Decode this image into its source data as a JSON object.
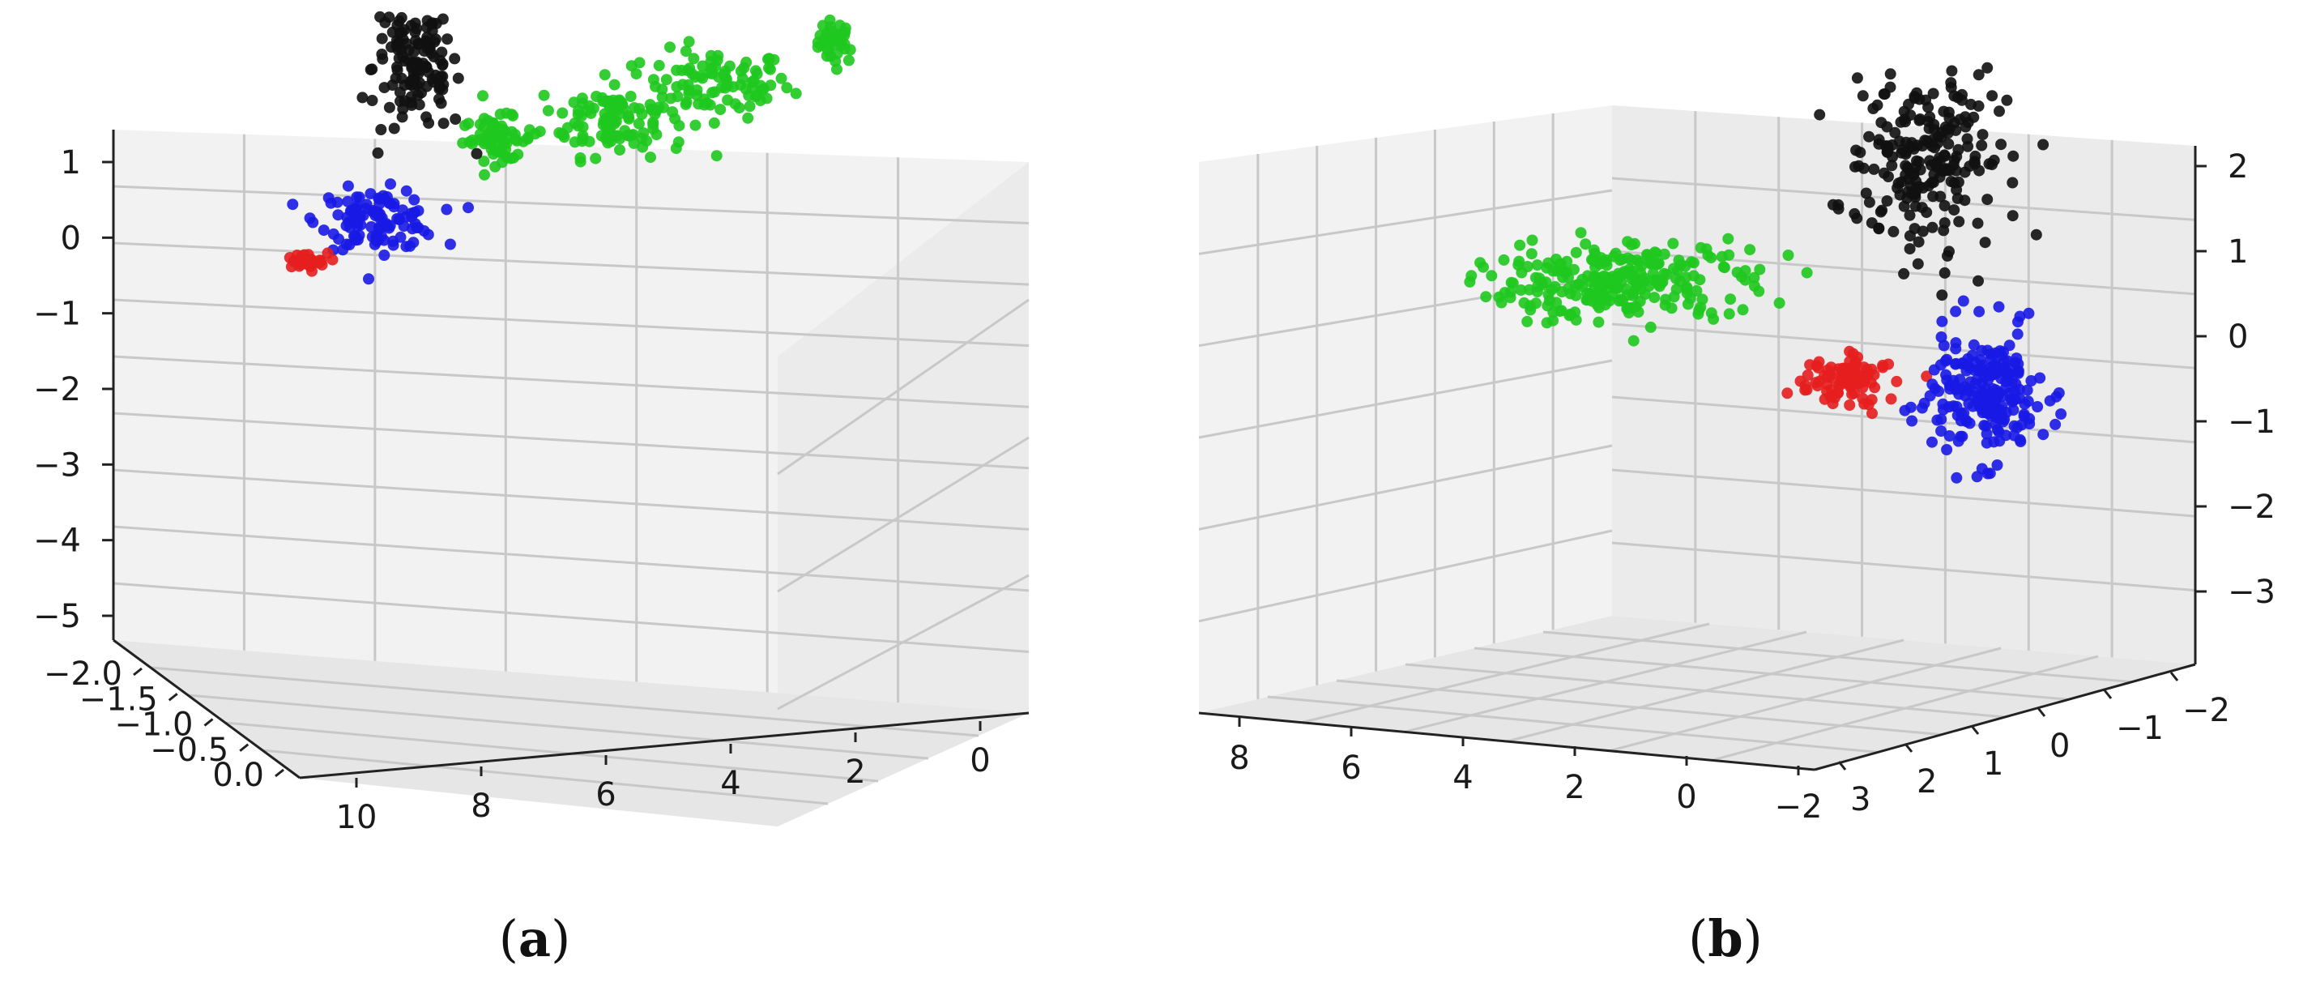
{
  "captions": [
    {
      "open": "(",
      "letter": "a",
      "close": ")"
    },
    {
      "open": "(",
      "letter": "b",
      "close": ")"
    }
  ],
  "colors": {
    "green": "#1ec81e",
    "black": "#111111",
    "blue": "#1a1ae6",
    "red": "#e61e1e"
  },
  "chart_data": [
    {
      "type": "scatter",
      "panel": "a",
      "title": "",
      "axes": {
        "x": {
          "ticks": [
            "10",
            "8",
            "6",
            "4",
            "2",
            "0"
          ],
          "range": [
            -1,
            11
          ]
        },
        "y": {
          "ticks": [
            "−2.0",
            "−1.5",
            "−1.0",
            "−0.5",
            "0.0"
          ],
          "range": [
            -2.0,
            0.0
          ]
        },
        "z": {
          "ticks": [
            "1",
            "0",
            "−1",
            "−2",
            "−3",
            "−4",
            "−5"
          ],
          "range": [
            -5.5,
            1.2
          ]
        }
      },
      "grid": true,
      "series": [
        {
          "color": "green",
          "clusters": [
            {
              "x": 8.2,
              "z": 0.9,
              "spread": [
                0.25,
                0.25
              ],
              "n": 40
            },
            {
              "x": 6.5,
              "z": 0.4,
              "spread": [
                1.0,
                0.4
              ],
              "n": 90
            },
            {
              "x": 5.0,
              "z": 0.0,
              "spread": [
                1.0,
                0.45
              ],
              "n": 120
            },
            {
              "x": 3.4,
              "z": -0.25,
              "spread": [
                0.5,
                0.25
              ],
              "n": 60
            }
          ]
        },
        {
          "color": "black",
          "clusters": [
            {
              "x": 2.4,
              "z": 0.6,
              "spread": [
                0.6,
                0.8
              ],
              "n": 140
            }
          ]
        },
        {
          "color": "blue",
          "clusters": [
            {
              "x": 1.6,
              "z": -1.2,
              "spread": [
                0.8,
                0.35
              ],
              "n": 110
            }
          ]
        },
        {
          "color": "red",
          "clusters": [
            {
              "x": 0.5,
              "z": -1.7,
              "spread": [
                0.35,
                0.1
              ],
              "n": 30
            }
          ]
        }
      ]
    },
    {
      "type": "scatter",
      "panel": "b",
      "title": "",
      "axes": {
        "x": {
          "ticks": [
            "8",
            "6",
            "4",
            "2",
            "0",
            "−2"
          ],
          "range": [
            -2.5,
            8.5
          ]
        },
        "y": {
          "ticks": [
            "3",
            "2",
            "1",
            "0",
            "−1",
            "−2"
          ],
          "range": [
            -2.5,
            3.5
          ]
        },
        "z": {
          "ticks": [
            "2",
            "1",
            "0",
            "−1",
            "−2",
            "−3"
          ],
          "range": [
            -3.5,
            2.4
          ]
        }
      },
      "grid": true,
      "series": [
        {
          "color": "green",
          "clusters": [
            {
              "x": 4.0,
              "z": 0.1,
              "spread": [
                1.6,
                0.45
              ],
              "n": 260
            }
          ]
        },
        {
          "color": "black",
          "clusters": [
            {
              "x": 0.2,
              "z": 1.3,
              "spread": [
                1.0,
                0.9
              ],
              "n": 220
            }
          ]
        },
        {
          "color": "red",
          "clusters": [
            {
              "x": 1.2,
              "z": -1.0,
              "spread": [
                0.55,
                0.25
              ],
              "n": 90
            }
          ]
        },
        {
          "color": "blue",
          "clusters": [
            {
              "x": -0.6,
              "z": -1.2,
              "spread": [
                0.7,
                0.7
              ],
              "n": 220
            }
          ]
        }
      ]
    }
  ]
}
